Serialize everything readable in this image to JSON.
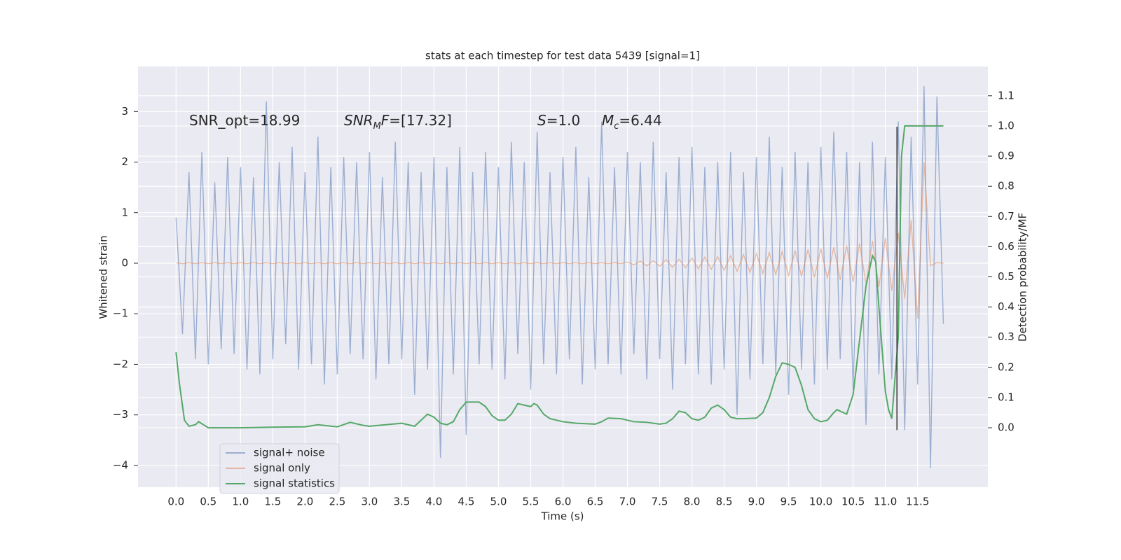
{
  "chart_data": {
    "type": "line",
    "title": "stats at each timestep for test data 5439 [signal=1]",
    "xlabel": "Time (s)",
    "ylabel": "Whitened strain",
    "y2label": "Detection probability/MF",
    "xlim": [
      -0.59,
      12.59
    ],
    "ylim": [
      -4.43,
      3.89
    ],
    "y2lim": [
      -0.197,
      1.197
    ],
    "xticks": [
      {
        "value": 0,
        "label": "0.0"
      },
      0.5,
      {
        "value": 1,
        "label": "1.0"
      },
      1.5,
      {
        "value": 2,
        "label": "2.0"
      },
      2.5,
      {
        "value": 3,
        "label": "3.0"
      },
      3.5,
      {
        "value": 4,
        "label": "4.0"
      },
      4.5,
      {
        "value": 5,
        "label": "5.0"
      },
      5.5,
      {
        "value": 6,
        "label": "6.0"
      },
      6.5,
      {
        "value": 7,
        "label": "7.0"
      },
      7.5,
      {
        "value": 8,
        "label": "8.0"
      },
      8.5,
      {
        "value": 9,
        "label": "9.0"
      },
      9.5,
      {
        "value": 10,
        "label": "10.0"
      },
      10.5,
      {
        "value": 11,
        "label": "11.0"
      },
      11.5
    ],
    "yticks": [
      {
        "value": -4,
        "label": "−4"
      },
      {
        "value": -3,
        "label": "−3"
      },
      {
        "value": -2,
        "label": "−2"
      },
      {
        "value": -1,
        "label": "−1"
      },
      0,
      1,
      2,
      3
    ],
    "y2ticks": [
      {
        "value": 0,
        "label": "0.0"
      },
      0.1,
      0.2,
      0.3,
      0.4,
      0.5,
      0.6,
      0.7,
      0.8,
      0.9,
      {
        "value": 1,
        "label": "1.0"
      },
      1.1
    ],
    "grid": true,
    "legend": "lower left",
    "annotations": [
      {
        "segments": [
          {
            "text": "SNR_opt=18.99"
          }
        ]
      },
      {
        "segments": [
          {
            "text": "SNR",
            "italic": true
          },
          {
            "text": "M",
            "italic": true,
            "sub": true
          },
          {
            "text": "F",
            "italic": true
          },
          {
            "text": "=[17.32]"
          }
        ]
      },
      {
        "segments": [
          {
            "text": "S",
            "italic": true
          },
          {
            "text": "=1.0"
          }
        ]
      },
      {
        "segments": [
          {
            "text": "M",
            "italic": true
          },
          {
            "text": "c",
            "italic": true,
            "sub": true
          },
          {
            "text": "=6.44"
          }
        ]
      }
    ],
    "vertical_line": {
      "x": 11.18,
      "ylim": [
        -3.3,
        2.7
      ],
      "color": "#333333"
    },
    "x": [
      0.0,
      0.1,
      0.2,
      0.3,
      0.4,
      0.5,
      0.6,
      0.7,
      0.8,
      0.9,
      1.0,
      1.1,
      1.2,
      1.3,
      1.4,
      1.5,
      1.6,
      1.7,
      1.8,
      1.9,
      2.0,
      2.1,
      2.2,
      2.3,
      2.4,
      2.5,
      2.6,
      2.7,
      2.8,
      2.9,
      3.0,
      3.1,
      3.2,
      3.3,
      3.4,
      3.5,
      3.6,
      3.7,
      3.8,
      3.9,
      4.0,
      4.1,
      4.2,
      4.3,
      4.4,
      4.5,
      4.6,
      4.7,
      4.8,
      4.9,
      5.0,
      5.1,
      5.2,
      5.3,
      5.4,
      5.5,
      5.6,
      5.7,
      5.8,
      5.9,
      6.0,
      6.1,
      6.2,
      6.3,
      6.4,
      6.5,
      6.6,
      6.7,
      6.8,
      6.9,
      7.0,
      7.1,
      7.2,
      7.3,
      7.4,
      7.5,
      7.6,
      7.7,
      7.8,
      7.9,
      8.0,
      8.1,
      8.2,
      8.3,
      8.4,
      8.5,
      8.6,
      8.7,
      8.8,
      8.9,
      9.0,
      9.1,
      9.2,
      9.3,
      9.4,
      9.5,
      9.6,
      9.7,
      9.8,
      9.9,
      10.0,
      10.1,
      10.2,
      10.3,
      10.4,
      10.5,
      10.6,
      10.7,
      10.8,
      10.9,
      11.0,
      11.1,
      11.2,
      11.3,
      11.4,
      11.5,
      11.6,
      11.7,
      11.8,
      11.9
    ],
    "series": [
      {
        "name": "signal+ noise",
        "color": "#4c72b0",
        "alpha": 0.5,
        "values": [
          0.9,
          -1.4,
          1.8,
          -1.9,
          2.2,
          -2.0,
          1.6,
          -1.7,
          2.1,
          -1.8,
          1.9,
          -2.1,
          1.7,
          -2.2,
          3.2,
          -1.9,
          2.0,
          -1.6,
          2.3,
          -2.1,
          1.8,
          -2.0,
          2.5,
          -2.4,
          1.9,
          -2.2,
          2.1,
          -1.8,
          2.0,
          -1.9,
          2.2,
          -2.3,
          1.7,
          -2.0,
          2.4,
          -1.9,
          2.0,
          -2.6,
          1.8,
          -2.1,
          2.1,
          -3.85,
          1.9,
          -2.2,
          2.3,
          -3.4,
          1.8,
          -2.0,
          2.2,
          -2.1,
          1.9,
          -2.3,
          2.4,
          -1.8,
          2.0,
          -2.5,
          2.6,
          -2.0,
          1.8,
          -2.2,
          2.1,
          -1.9,
          2.3,
          -2.4,
          1.7,
          -2.1,
          2.8,
          -2.0,
          1.9,
          -2.2,
          2.2,
          -1.8,
          2.0,
          -2.3,
          2.4,
          -1.9,
          1.8,
          -2.5,
          2.1,
          -2.0,
          2.3,
          -2.2,
          1.9,
          -2.4,
          2.0,
          -2.1,
          2.2,
          -3.0,
          1.8,
          -2.3,
          2.1,
          -2.0,
          2.5,
          -2.2,
          1.9,
          -2.6,
          2.2,
          -2.1,
          2.0,
          -2.4,
          2.3,
          -2.1,
          2.6,
          -1.9,
          2.2,
          -2.5,
          2.0,
          -3.2,
          2.4,
          -2.2,
          2.1,
          -2.3,
          2.8,
          -3.3,
          2.5,
          -2.4,
          3.5,
          -4.05,
          3.3,
          -1.2
        ]
      },
      {
        "name": "signal only",
        "color": "#dd8452",
        "alpha": 0.5,
        "values": [
          0.01,
          -0.01,
          0.01,
          -0.01,
          0.01,
          -0.01,
          0.01,
          -0.01,
          0.01,
          -0.01,
          0.01,
          -0.01,
          0.01,
          -0.01,
          0.01,
          -0.01,
          0.01,
          -0.01,
          0.01,
          -0.01,
          0.01,
          -0.01,
          0.01,
          -0.01,
          0.01,
          -0.01,
          0.01,
          -0.01,
          0.01,
          -0.01,
          0.01,
          -0.01,
          0.01,
          -0.01,
          0.01,
          -0.01,
          0.01,
          -0.01,
          0.01,
          -0.01,
          0.01,
          -0.01,
          0.01,
          -0.01,
          0.01,
          -0.01,
          0.01,
          -0.01,
          0.01,
          -0.01,
          0.01,
          -0.01,
          0.01,
          -0.01,
          0.01,
          -0.01,
          0.01,
          -0.01,
          0.01,
          -0.01,
          0.01,
          -0.01,
          0.01,
          -0.01,
          0.01,
          -0.01,
          0.01,
          -0.01,
          0.01,
          -0.01,
          0.02,
          -0.03,
          0.04,
          -0.05,
          0.05,
          -0.06,
          0.07,
          -0.08,
          0.08,
          -0.09,
          0.1,
          -0.11,
          0.12,
          -0.12,
          0.13,
          -0.14,
          0.15,
          -0.16,
          0.17,
          -0.18,
          0.19,
          -0.2,
          0.21,
          -0.22,
          0.23,
          -0.24,
          0.25,
          -0.26,
          0.27,
          -0.28,
          0.29,
          -0.3,
          0.32,
          -0.33,
          0.35,
          -0.37,
          0.39,
          -0.41,
          0.44,
          -0.47,
          0.5,
          -0.55,
          0.6,
          -0.7,
          0.85,
          -1.1,
          2.0,
          -0.05,
          0.01,
          0.0
        ]
      },
      {
        "name": "signal statistics",
        "color": "#55a868",
        "axis": "y2",
        "x": [
          0.0,
          0.05,
          0.13,
          0.2,
          0.3,
          0.35,
          0.5,
          1.0,
          1.5,
          2.0,
          2.2,
          2.5,
          2.7,
          2.9,
          3.0,
          3.5,
          3.7,
          3.9,
          4.0,
          4.1,
          4.2,
          4.3,
          4.4,
          4.5,
          4.7,
          4.8,
          4.9,
          5.0,
          5.1,
          5.2,
          5.3,
          5.4,
          5.5,
          5.55,
          5.6,
          5.7,
          5.8,
          6.0,
          6.2,
          6.5,
          6.6,
          6.7,
          6.9,
          7.1,
          7.3,
          7.5,
          7.6,
          7.7,
          7.8,
          7.9,
          8.0,
          8.1,
          8.2,
          8.3,
          8.4,
          8.5,
          8.6,
          8.7,
          8.8,
          9.0,
          9.1,
          9.2,
          9.3,
          9.4,
          9.5,
          9.6,
          9.7,
          9.8,
          9.9,
          10.0,
          10.1,
          10.2,
          10.25,
          10.4,
          10.5,
          10.6,
          10.7,
          10.8,
          10.85,
          10.9,
          11.0,
          11.05,
          11.1,
          11.2,
          11.25,
          11.3,
          11.5,
          11.9
        ],
        "values": [
          0.25,
          0.15,
          0.025,
          0.005,
          0.01,
          0.02,
          0.0,
          0.0,
          0.002,
          0.003,
          0.01,
          0.003,
          0.018,
          0.008,
          0.005,
          0.015,
          0.005,
          0.045,
          0.035,
          0.015,
          0.01,
          0.02,
          0.06,
          0.085,
          0.085,
          0.07,
          0.04,
          0.025,
          0.025,
          0.045,
          0.08,
          0.075,
          0.07,
          0.08,
          0.075,
          0.045,
          0.03,
          0.02,
          0.015,
          0.012,
          0.02,
          0.032,
          0.03,
          0.02,
          0.018,
          0.012,
          0.015,
          0.03,
          0.055,
          0.05,
          0.03,
          0.025,
          0.035,
          0.065,
          0.075,
          0.06,
          0.035,
          0.03,
          0.03,
          0.032,
          0.05,
          0.1,
          0.17,
          0.215,
          0.21,
          0.2,
          0.14,
          0.06,
          0.03,
          0.02,
          0.025,
          0.05,
          0.06,
          0.045,
          0.11,
          0.29,
          0.47,
          0.57,
          0.55,
          0.4,
          0.12,
          0.06,
          0.03,
          0.3,
          0.9,
          1.0,
          1.0,
          1.0
        ]
      }
    ]
  }
}
